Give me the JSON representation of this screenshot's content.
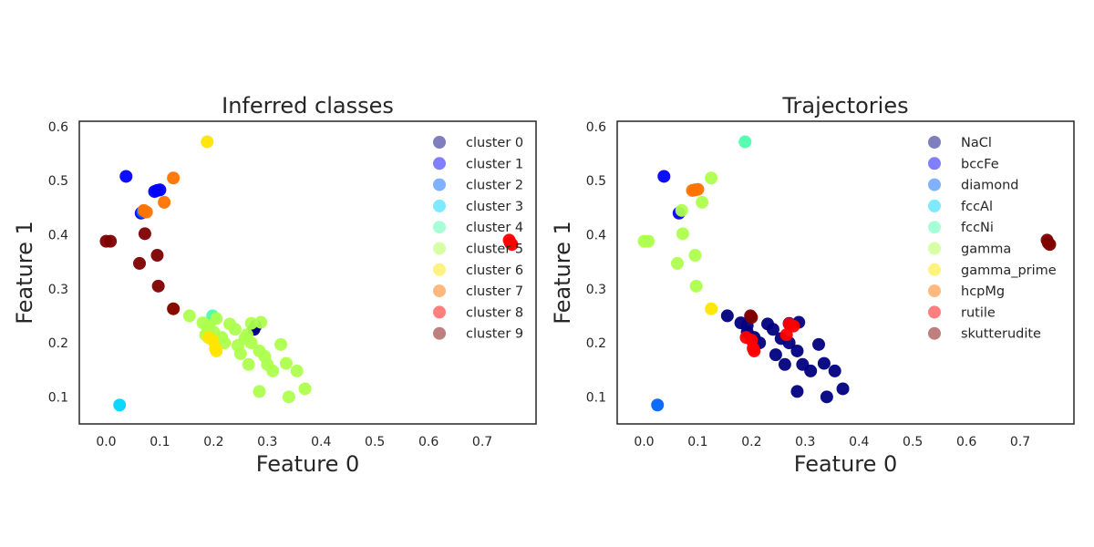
{
  "chart_data": [
    {
      "type": "scatter",
      "title": "Inferred classes",
      "xlabel": "Feature 0",
      "ylabel": "Feature 1",
      "xlim": [
        -0.05,
        0.8
      ],
      "ylim": [
        0.05,
        0.61
      ],
      "xticks": [
        "0.0",
        "0.1",
        "0.2",
        "0.3",
        "0.4",
        "0.5",
        "0.6",
        "0.7"
      ],
      "yticks": [
        "0.1",
        "0.2",
        "0.3",
        "0.4",
        "0.5",
        "0.6"
      ],
      "grid": false,
      "legend_position": "top-right",
      "series": [
        {
          "name": "cluster 0",
          "color": "#00007f",
          "points": [
            [
              0.275,
              0.225
            ],
            [
              0.278,
              0.231
            ]
          ]
        },
        {
          "name": "cluster 1",
          "color": "#0000ff",
          "points": [
            [
              0.037,
              0.508
            ],
            [
              0.09,
              0.48
            ],
            [
              0.095,
              0.482
            ],
            [
              0.1,
              0.483
            ],
            [
              0.065,
              0.44
            ]
          ]
        },
        {
          "name": "cluster 2",
          "color": "#0063ff",
          "points": [
            [
              0.068,
              0.442
            ]
          ]
        },
        {
          "name": "cluster 3",
          "color": "#00d4ff",
          "points": [
            [
              0.025,
              0.085
            ]
          ]
        },
        {
          "name": "cluster 4",
          "color": "#4effad",
          "points": [
            [
              0.198,
              0.25
            ],
            [
              0.2,
              0.247
            ]
          ]
        },
        {
          "name": "cluster 5",
          "color": "#adff4e",
          "points": [
            [
              0.155,
              0.25
            ],
            [
              0.18,
              0.237
            ],
            [
              0.192,
              0.232
            ],
            [
              0.205,
              0.245
            ],
            [
              0.215,
              0.21
            ],
            [
              0.23,
              0.235
            ],
            [
              0.24,
              0.225
            ],
            [
              0.245,
              0.195
            ],
            [
              0.25,
              0.18
            ],
            [
              0.258,
              0.208
            ],
            [
              0.262,
              0.215
            ],
            [
              0.27,
              0.2
            ],
            [
              0.265,
              0.16
            ],
            [
              0.285,
              0.185
            ],
            [
              0.295,
              0.175
            ],
            [
              0.3,
              0.16
            ],
            [
              0.31,
              0.148
            ],
            [
              0.285,
              0.11
            ],
            [
              0.34,
              0.1
            ],
            [
              0.2,
              0.22
            ],
            [
              0.205,
              0.205
            ],
            [
              0.22,
              0.2
            ],
            [
              0.27,
              0.236
            ],
            [
              0.288,
              0.238
            ],
            [
              0.325,
              0.197
            ],
            [
              0.335,
              0.162
            ],
            [
              0.355,
              0.148
            ],
            [
              0.37,
              0.115
            ],
            [
              0.185,
              0.215
            ],
            [
              0.19,
              0.225
            ]
          ]
        },
        {
          "name": "cluster 6",
          "color": "#ffe500",
          "points": [
            [
              0.188,
              0.572
            ],
            [
              0.125,
              0.263
            ],
            [
              0.203,
              0.19
            ],
            [
              0.205,
              0.185
            ],
            [
              0.19,
              0.21
            ],
            [
              0.198,
              0.205
            ]
          ]
        },
        {
          "name": "cluster 7",
          "color": "#ff7300",
          "points": [
            [
              0.125,
              0.505
            ],
            [
              0.108,
              0.46
            ],
            [
              0.07,
              0.445
            ],
            [
              0.075,
              0.442
            ]
          ]
        },
        {
          "name": "cluster 8",
          "color": "#ff0000",
          "points": [
            [
              0.75,
              0.39
            ],
            [
              0.752,
              0.385
            ],
            [
              0.755,
              0.382
            ]
          ]
        },
        {
          "name": "cluster 9",
          "color": "#7f0000",
          "points": [
            [
              0.0,
              0.388
            ],
            [
              0.008,
              0.388
            ],
            [
              0.072,
              0.402
            ],
            [
              0.062,
              0.347
            ],
            [
              0.095,
              0.362
            ],
            [
              0.097,
              0.305
            ],
            [
              0.125,
              0.263
            ]
          ]
        }
      ]
    },
    {
      "type": "scatter",
      "title": "Trajectories",
      "xlabel": "Feature 0",
      "ylabel": "Feature 1",
      "xlim": [
        -0.05,
        0.8
      ],
      "ylim": [
        0.05,
        0.61
      ],
      "xticks": [
        "0.0",
        "0.1",
        "0.2",
        "0.3",
        "0.4",
        "0.5",
        "0.6",
        "0.7"
      ],
      "yticks": [
        "0.1",
        "0.2",
        "0.3",
        "0.4",
        "0.5",
        "0.6"
      ],
      "grid": false,
      "legend_position": "top-right",
      "series": [
        {
          "name": "NaCl",
          "color": "#00007f",
          "points": [
            [
              0.155,
              0.25
            ],
            [
              0.18,
              0.237
            ],
            [
              0.192,
              0.232
            ],
            [
              0.205,
              0.21
            ],
            [
              0.215,
              0.2
            ],
            [
              0.23,
              0.235
            ],
            [
              0.24,
              0.225
            ],
            [
              0.245,
              0.178
            ],
            [
              0.255,
              0.208
            ],
            [
              0.262,
              0.16
            ],
            [
              0.27,
              0.2
            ],
            [
              0.285,
              0.185
            ],
            [
              0.295,
              0.16
            ],
            [
              0.31,
              0.148
            ],
            [
              0.285,
              0.11
            ],
            [
              0.34,
              0.1
            ],
            [
              0.27,
              0.236
            ],
            [
              0.288,
              0.238
            ],
            [
              0.325,
              0.197
            ],
            [
              0.335,
              0.162
            ],
            [
              0.355,
              0.148
            ],
            [
              0.37,
              0.115
            ],
            [
              0.192,
              0.22
            ]
          ]
        },
        {
          "name": "bccFe",
          "color": "#0000ff",
          "points": [
            [
              0.037,
              0.508
            ],
            [
              0.065,
              0.44
            ]
          ]
        },
        {
          "name": "diamond",
          "color": "#0063ff",
          "points": [
            [
              0.025,
              0.085
            ]
          ]
        },
        {
          "name": "fccAl",
          "color": "#00d4ff",
          "points": []
        },
        {
          "name": "fccNi",
          "color": "#4effad",
          "points": [
            [
              0.188,
              0.572
            ]
          ]
        },
        {
          "name": "gamma",
          "color": "#adff4e",
          "points": [
            [
              0.0,
              0.388
            ],
            [
              0.008,
              0.388
            ],
            [
              0.07,
              0.445
            ],
            [
              0.072,
              0.402
            ],
            [
              0.062,
              0.347
            ],
            [
              0.095,
              0.362
            ],
            [
              0.097,
              0.305
            ],
            [
              0.108,
              0.46
            ],
            [
              0.125,
              0.505
            ]
          ]
        },
        {
          "name": "gamma_prime",
          "color": "#ffe500",
          "points": [
            [
              0.125,
              0.263
            ]
          ]
        },
        {
          "name": "hcpMg",
          "color": "#ff7300",
          "points": [
            [
              0.09,
              0.482
            ],
            [
              0.095,
              0.483
            ],
            [
              0.1,
              0.484
            ]
          ]
        },
        {
          "name": "rutile",
          "color": "#ff0000",
          "points": [
            [
              0.203,
              0.19
            ],
            [
              0.205,
              0.185
            ],
            [
              0.19,
              0.21
            ],
            [
              0.2,
              0.205
            ],
            [
              0.27,
              0.235
            ],
            [
              0.278,
              0.231
            ],
            [
              0.265,
              0.215
            ]
          ]
        },
        {
          "name": "skutterudite",
          "color": "#7f0000",
          "points": [
            [
              0.75,
              0.39
            ],
            [
              0.752,
              0.385
            ],
            [
              0.755,
              0.382
            ],
            [
              0.198,
              0.25
            ],
            [
              0.2,
              0.247
            ]
          ]
        }
      ]
    }
  ]
}
